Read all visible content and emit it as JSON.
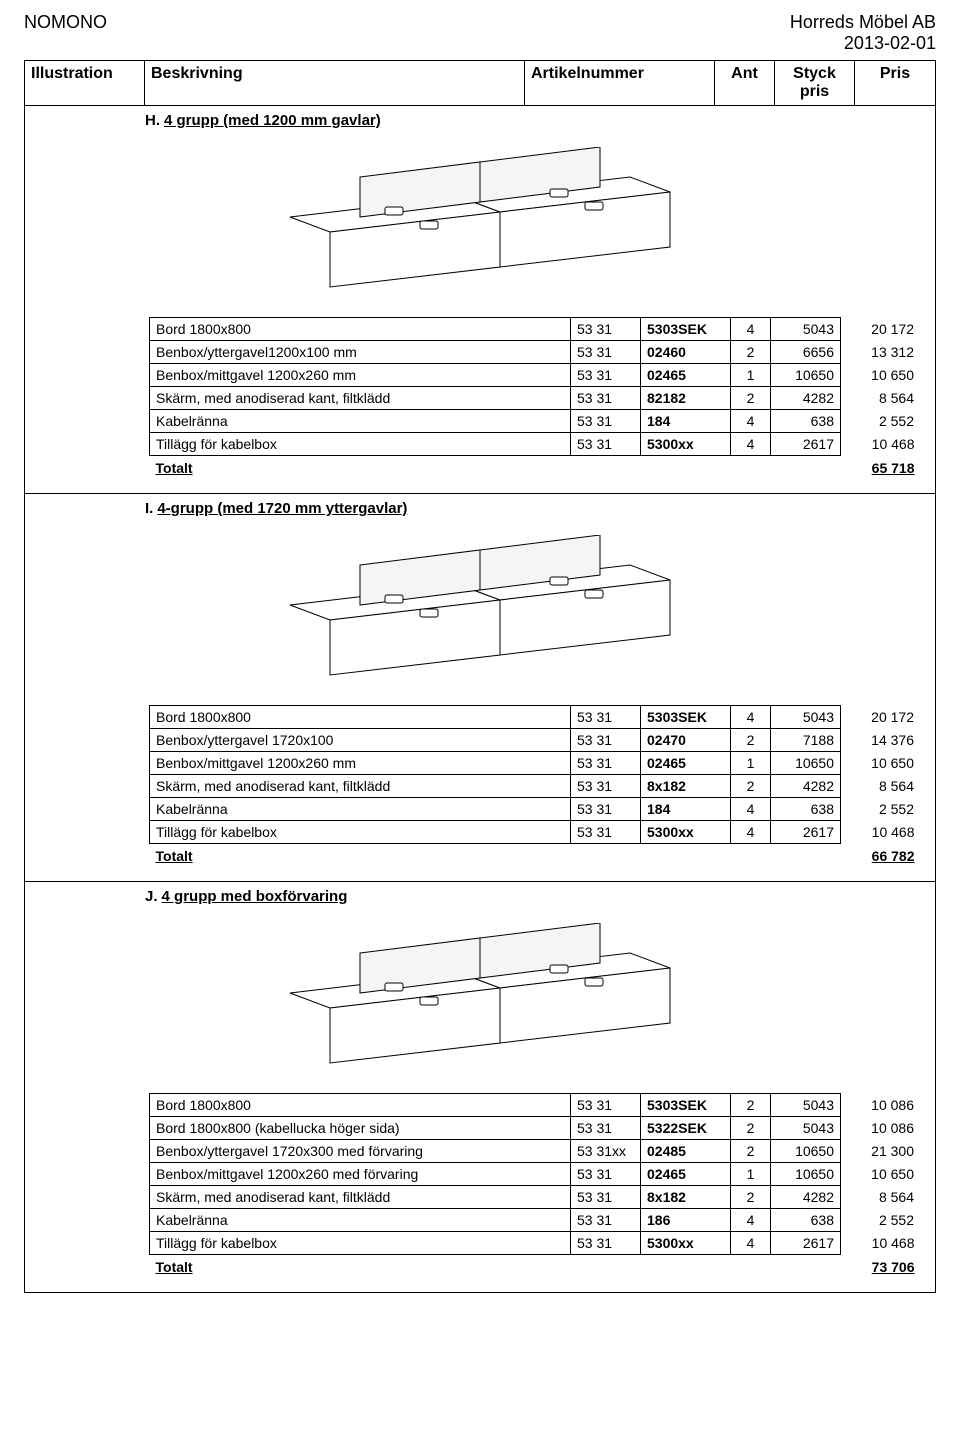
{
  "header": {
    "left": "NOMONO",
    "right_line1": "Horreds Möbel AB",
    "right_line2": "2013-02-01"
  },
  "columns": {
    "illustration": "Illustration",
    "beskrivning": "Beskrivning",
    "artikelnummer": "Artikelnummer",
    "ant": "Ant",
    "styckpris": "Styck pris",
    "pris": "Pris"
  },
  "sections": [
    {
      "prefix": "H.",
      "title": "4 grupp (med 1200 mm gavlar)",
      "rows": [
        {
          "desc": "Bord 1800x800",
          "art1": "53 31",
          "art2": "5303SEK",
          "ant": "4",
          "sp": "5043",
          "pris": "20 172"
        },
        {
          "desc": "Benbox/yttergavel1200x100 mm",
          "art1": "53 31",
          "art2": "02460",
          "ant": "2",
          "sp": "6656",
          "pris": "13 312"
        },
        {
          "desc": "Benbox/mittgavel 1200x260 mm",
          "art1": "53 31",
          "art2": "02465",
          "ant": "1",
          "sp": "10650",
          "pris": "10 650"
        },
        {
          "desc": "Skärm, med anodiserad kant, filtklädd",
          "art1": "53 31",
          "art2": "82182",
          "ant": "2",
          "sp": "4282",
          "pris": "8 564"
        },
        {
          "desc": "Kabelränna",
          "art1": "53 31",
          "art2": "184",
          "ant": "4",
          "sp": "638",
          "pris": "2 552"
        },
        {
          "desc": "Tillägg för kabelbox",
          "art1": "53 31",
          "art2": "5300xx",
          "ant": "4",
          "sp": "2617",
          "pris": "10 468"
        }
      ],
      "total_label": "Totalt",
      "total_value": "65 718"
    },
    {
      "prefix": "I.",
      "title": "4-grupp (med 1720 mm yttergavlar)",
      "rows": [
        {
          "desc": "Bord 1800x800",
          "art1": "53 31",
          "art2": "5303SEK",
          "ant": "4",
          "sp": "5043",
          "pris": "20 172"
        },
        {
          "desc": "Benbox/yttergavel 1720x100",
          "art1": "53 31",
          "art2": "02470",
          "ant": "2",
          "sp": "7188",
          "pris": "14 376"
        },
        {
          "desc": "Benbox/mittgavel 1200x260 mm",
          "art1": "53 31",
          "art2": "02465",
          "ant": "1",
          "sp": "10650",
          "pris": "10 650"
        },
        {
          "desc": "Skärm, med anodiserad kant, filtklädd",
          "art1": "53 31",
          "art2": "8x182",
          "ant": "2",
          "sp": "4282",
          "pris": "8 564"
        },
        {
          "desc": "Kabelränna",
          "art1": "53 31",
          "art2": "184",
          "ant": "4",
          "sp": "638",
          "pris": "2 552"
        },
        {
          "desc": "Tillägg för kabelbox",
          "art1": "53 31",
          "art2": "5300xx",
          "ant": "4",
          "sp": "2617",
          "pris": "10 468"
        }
      ],
      "total_label": "Totalt",
      "total_value": "66 782"
    },
    {
      "prefix": "J.",
      "title": "4 grupp med boxförvaring",
      "rows": [
        {
          "desc": "Bord 1800x800",
          "art1": "53 31",
          "art2": "5303SEK",
          "ant": "2",
          "sp": "5043",
          "pris": "10 086"
        },
        {
          "desc": "Bord 1800x800 (kabellucka höger sida)",
          "art1": "53 31",
          "art2": "5322SEK",
          "ant": "2",
          "sp": "5043",
          "pris": "10 086"
        },
        {
          "desc": "Benbox/yttergavel 1720x300 med förvaring",
          "art1": "53 31xx",
          "art2": "02485",
          "ant": "2",
          "sp": "10650",
          "pris": "21 300"
        },
        {
          "desc": "Benbox/mittgavel 1200x260 med förvaring",
          "art1": "53 31",
          "art2": "02465",
          "ant": "1",
          "sp": "10650",
          "pris": "10 650"
        },
        {
          "desc": "Skärm, med anodiserad kant, filtklädd",
          "art1": "53 31",
          "art2": "8x182",
          "ant": "2",
          "sp": "4282",
          "pris": "8 564"
        },
        {
          "desc": "Kabelränna",
          "art1": "53 31",
          "art2": "186",
          "ant": "4",
          "sp": "638",
          "pris": "2 552"
        },
        {
          "desc": "Tillägg för kabelbox",
          "art1": "53 31",
          "art2": "5300xx",
          "ant": "4",
          "sp": "2617",
          "pris": "10 468"
        }
      ],
      "total_label": "Totalt",
      "total_value": "73 706"
    }
  ]
}
